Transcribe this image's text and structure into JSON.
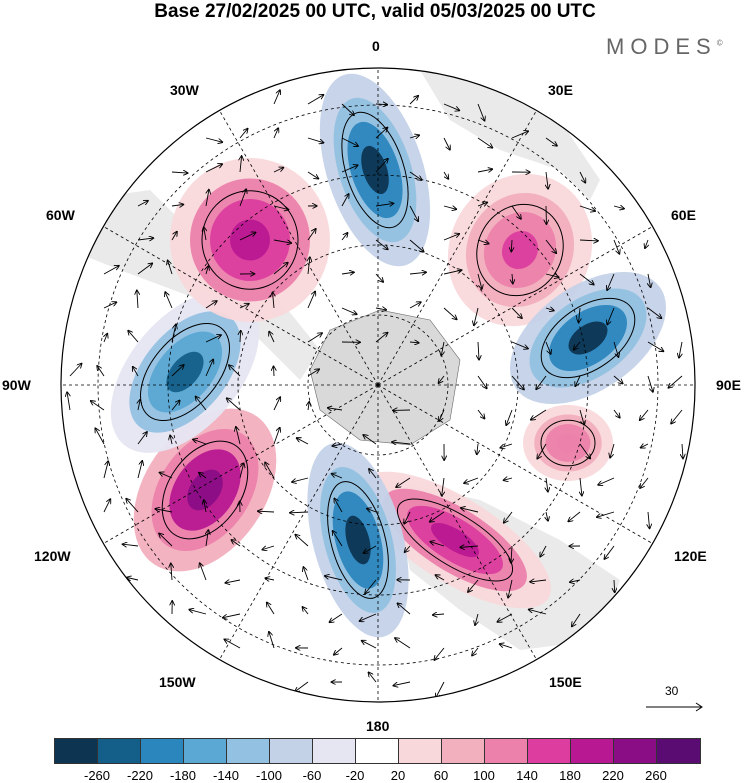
{
  "title": "Base 27/02/2025 00 UTC, valid 05/03/2025 00 UTC",
  "brand": "MODES",
  "brand_mark": "©",
  "longitude_labels": {
    "deg0": "0",
    "w30": "30W",
    "e30": "30E",
    "w60": "60W",
    "e60": "60E",
    "w90": "90W",
    "e90": "90E",
    "w120": "120W",
    "e120": "120E",
    "w150": "150W",
    "e150": "150E",
    "deg180": "180"
  },
  "vector_scale_label": "30",
  "colorbar": {
    "colors": [
      "#0d3552",
      "#135f8a",
      "#2b86be",
      "#5aa8d3",
      "#93c1e1",
      "#c4d2e8",
      "#e6e6f3",
      "#ffffff",
      "#f9d8db",
      "#f2afbe",
      "#ec82ab",
      "#dc3d9e",
      "#b81891",
      "#8a0d85",
      "#5a0c72"
    ],
    "ticks": [
      "-260",
      "-220",
      "-180",
      "-140",
      "-100",
      "-60",
      "-20",
      "20",
      "60",
      "100",
      "140",
      "180",
      "220",
      "260"
    ]
  },
  "anomaly_centers": [
    {
      "lon_sector": "10W",
      "sign": "negative",
      "level": "-260"
    },
    {
      "lon_sector": "45E",
      "sign": "positive",
      "level": "180"
    },
    {
      "lon_sector": "75E",
      "sign": "negative",
      "level": "-260"
    },
    {
      "lon_sector": "105E",
      "sign": "positive",
      "level": "140"
    },
    {
      "lon_sector": "150E",
      "sign": "positive",
      "level": "220"
    },
    {
      "lon_sector": "170W",
      "sign": "negative",
      "level": "-260"
    },
    {
      "lon_sector": "120W",
      "sign": "positive",
      "level": "260"
    },
    {
      "lon_sector": "80W",
      "sign": "negative",
      "level": "-220"
    },
    {
      "lon_sector": "45W",
      "sign": "positive",
      "level": "220"
    }
  ]
}
